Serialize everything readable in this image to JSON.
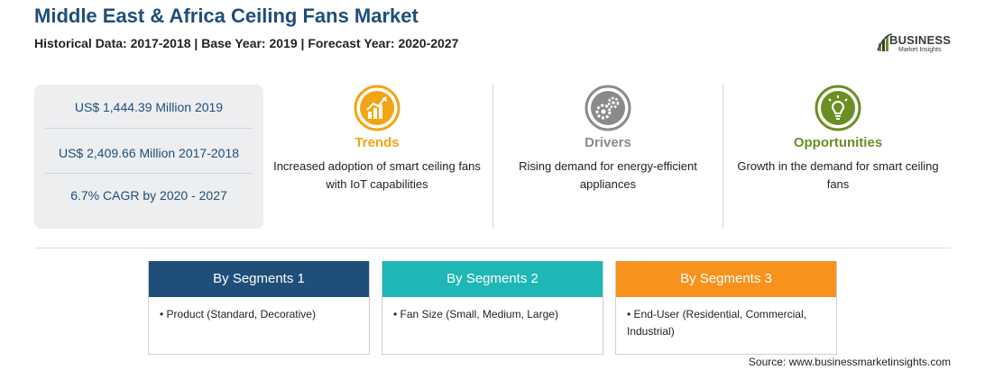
{
  "header": {
    "title": "Middle East & Africa Ceiling Fans Market",
    "subtitle": "Historical Data: 2017-2018 | Base Year: 2019 | Forecast Year: 2020-2027"
  },
  "logo": {
    "name": "BUSINESS",
    "tagline": "Market Insights",
    "icon": "bar-chart-logo-icon"
  },
  "stats": [
    {
      "text": "US$ 1,444.39 Million 2019"
    },
    {
      "text": "US$ 2,409.66 Million 2017-2018"
    },
    {
      "text": "6.7% CAGR by 2020 - 2027"
    }
  ],
  "columns": [
    {
      "heading": "Trends",
      "text": "Increased adoption of smart ceiling fans with IoT capabilities",
      "icon": "trend-chart-icon",
      "color": "#f2a413"
    },
    {
      "heading": "Drivers",
      "text": "Rising demand for energy-efficient appliances",
      "icon": "gears-icon",
      "color": "#8a8a8a"
    },
    {
      "heading": "Opportunities",
      "text": "Growth in the demand for smart ceiling fans",
      "icon": "lightbulb-icon",
      "color": "#6b8e23"
    }
  ],
  "segments": [
    {
      "heading": "By Segments 1",
      "item": "Product (Standard, Decorative)",
      "color": "#1f4e79"
    },
    {
      "heading": "By Segments 2",
      "item": "Fan Size (Small, Medium, Large)",
      "color": "#1fb6b6"
    },
    {
      "heading": "By Segments 3",
      "item": "End-User (Residential, Commercial, Industrial)",
      "color": "#f7931d"
    }
  ],
  "footer": {
    "source": "Source: www.businessmarketinsights.com"
  }
}
